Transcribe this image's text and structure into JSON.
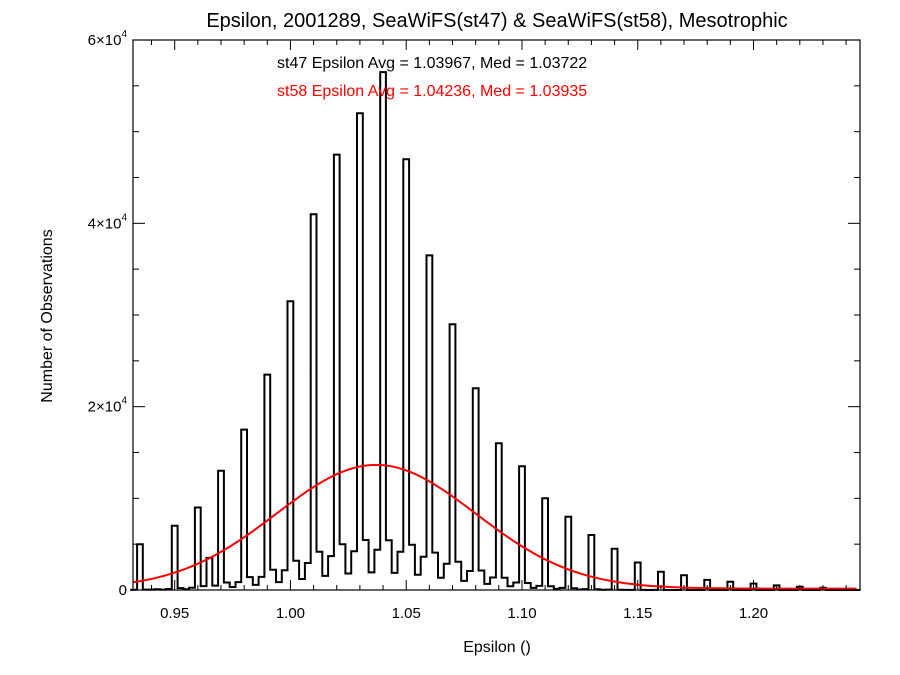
{
  "chart_data": {
    "type": "bar",
    "title": "Epsilon, 2001289, SeaWiFS(st47) & SeaWiFS(st58), Mesotrophic",
    "xlabel": "Epsilon ()",
    "ylabel": "Number of Observations",
    "xlim": [
      0.932,
      1.246
    ],
    "ylim": [
      0,
      60000
    ],
    "x_ticks": [
      0.95,
      1.0,
      1.05,
      1.1,
      1.15,
      1.2
    ],
    "x_tick_labels": [
      "0.95",
      "1.00",
      "1.05",
      "1.10",
      "1.15",
      "1.20"
    ],
    "y_ticks": [
      0,
      20000,
      40000,
      60000
    ],
    "y_tick_labels": [
      {
        "base": "0",
        "exp": ""
      },
      {
        "base": "2×10",
        "exp": "4"
      },
      {
        "base": "4×10",
        "exp": "4"
      },
      {
        "base": "6×10",
        "exp": "4"
      }
    ],
    "grid": false,
    "annotations": [
      {
        "text": "st47 Epsilon Avg = 1.03967, Med = 1.03722",
        "color": "#000000"
      },
      {
        "text": "st58 Epsilon Avg = 1.04236, Med = 1.03935",
        "color": "#ff0000"
      }
    ],
    "series": [
      {
        "style": "histogram-step",
        "color": "#000000",
        "peaks": [
          [
            0.935,
            5000
          ],
          [
            0.95,
            7000
          ],
          [
            0.96,
            9000
          ],
          [
            0.965,
            3500
          ],
          [
            0.97,
            13000
          ],
          [
            0.98,
            17500
          ],
          [
            0.99,
            23500
          ],
          [
            1.0,
            31500
          ],
          [
            1.01,
            41000
          ],
          [
            1.02,
            47500
          ],
          [
            1.03,
            52000
          ],
          [
            1.04,
            56500
          ],
          [
            1.05,
            47000
          ],
          [
            1.06,
            36500
          ],
          [
            1.07,
            29000
          ],
          [
            1.08,
            22000
          ],
          [
            1.09,
            16000
          ],
          [
            1.1,
            13500
          ],
          [
            1.11,
            10000
          ],
          [
            1.12,
            8000
          ],
          [
            1.13,
            6000
          ],
          [
            1.14,
            4500
          ],
          [
            1.15,
            3000
          ],
          [
            1.16,
            2000
          ],
          [
            1.17,
            1600
          ],
          [
            1.18,
            1100
          ],
          [
            1.19,
            900
          ],
          [
            1.2,
            700
          ],
          [
            1.21,
            500
          ],
          [
            1.22,
            350
          ],
          [
            1.23,
            250
          ]
        ],
        "baseline": {
          "mu": 1.037,
          "sigma": 0.033,
          "amp": 5500
        }
      },
      {
        "style": "line",
        "color": "#ff0000",
        "shape": {
          "mu": 1.037,
          "sigma": 0.043,
          "amp": 13500
        }
      }
    ]
  }
}
